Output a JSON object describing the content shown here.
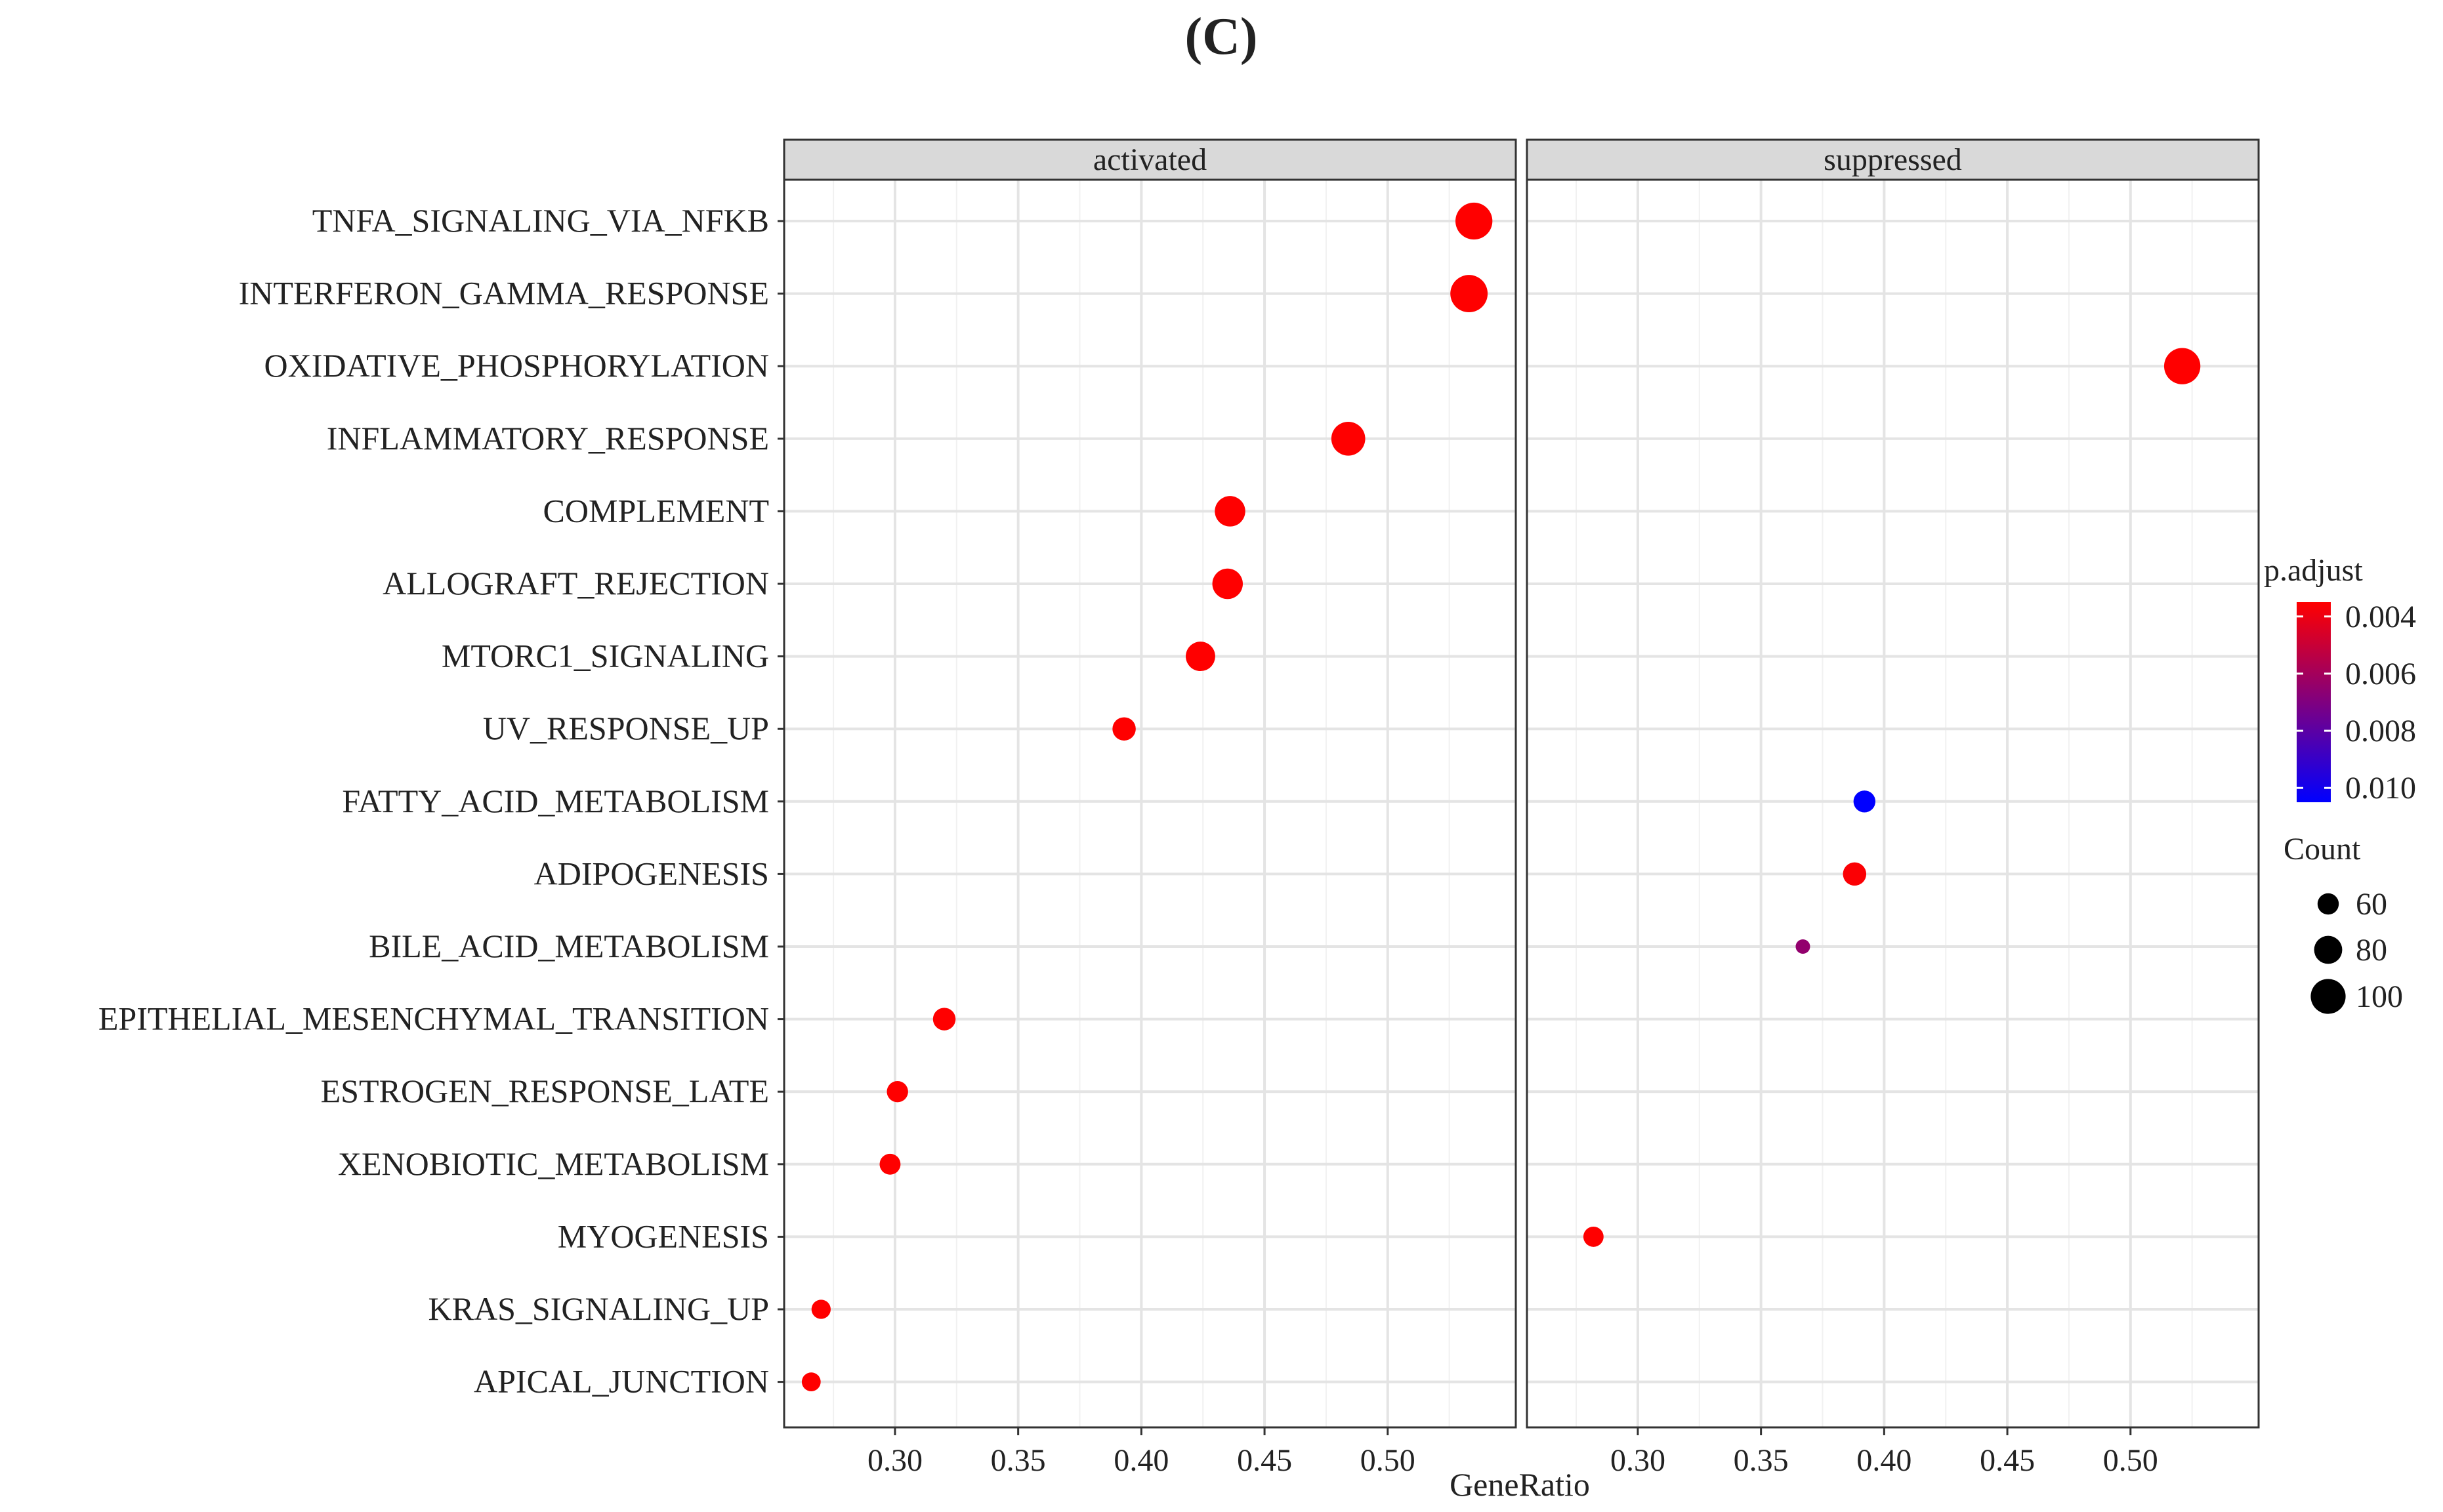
{
  "panel_label": "(C)",
  "chart_data": {
    "type": "scatter",
    "subtype": "dotplot",
    "xlabel": "GeneRatio",
    "ylabel": "",
    "xlim": [
      0.255,
      0.552
    ],
    "xticks": [
      0.3,
      0.35,
      0.4,
      0.45,
      0.5
    ],
    "xtick_labels": [
      "0.30",
      "0.35",
      "0.40",
      "0.45",
      "0.50"
    ],
    "grid": true,
    "categories": [
      "TNFA_SIGNALING_VIA_NFKB",
      "INTERFERON_GAMMA_RESPONSE",
      "OXIDATIVE_PHOSPHORYLATION",
      "INFLAMMATORY_RESPONSE",
      "COMPLEMENT",
      "ALLOGRAFT_REJECTION",
      "MTORC1_SIGNALING",
      "UV_RESPONSE_UP",
      "FATTY_ACID_METABOLISM",
      "ADIPOGENESIS",
      "BILE_ACID_METABOLISM",
      "EPITHELIAL_MESENCHYMAL_TRANSITION",
      "ESTROGEN_RESPONSE_LATE",
      "XENOBIOTIC_METABOLISM",
      "MYOGENESIS",
      "KRAS_SIGNALING_UP",
      "APICAL_JUNCTION"
    ],
    "panels": [
      {
        "name": "activated",
        "points": [
          {
            "category": "TNFA_SIGNALING_VIA_NFKB",
            "x": 0.535,
            "count": 106,
            "p_adjust": 0.0035
          },
          {
            "category": "INTERFERON_GAMMA_RESPONSE",
            "x": 0.533,
            "count": 107,
            "p_adjust": 0.0035
          },
          {
            "category": "INFLAMMATORY_RESPONSE",
            "x": 0.484,
            "count": 97,
            "p_adjust": 0.0035
          },
          {
            "category": "COMPLEMENT",
            "x": 0.436,
            "count": 87,
            "p_adjust": 0.0035
          },
          {
            "category": "ALLOGRAFT_REJECTION",
            "x": 0.435,
            "count": 87,
            "p_adjust": 0.0035
          },
          {
            "category": "MTORC1_SIGNALING",
            "x": 0.424,
            "count": 84,
            "p_adjust": 0.0035
          },
          {
            "category": "UV_RESPONSE_UP",
            "x": 0.393,
            "count": 66,
            "p_adjust": 0.0035
          },
          {
            "category": "EPITHELIAL_MESENCHYMAL_TRANSITION",
            "x": 0.32,
            "count": 64,
            "p_adjust": 0.0035
          },
          {
            "category": "ESTROGEN_RESPONSE_LATE",
            "x": 0.301,
            "count": 60,
            "p_adjust": 0.0035
          },
          {
            "category": "XENOBIOTIC_METABOLISM",
            "x": 0.298,
            "count": 59,
            "p_adjust": 0.0035
          },
          {
            "category": "KRAS_SIGNALING_UP",
            "x": 0.27,
            "count": 54,
            "p_adjust": 0.0035
          },
          {
            "category": "APICAL_JUNCTION",
            "x": 0.266,
            "count": 53,
            "p_adjust": 0.0035
          }
        ]
      },
      {
        "name": "suppressed",
        "points": [
          {
            "category": "OXIDATIVE_PHOSPHORYLATION",
            "x": 0.521,
            "count": 104,
            "p_adjust": 0.0035
          },
          {
            "category": "FATTY_ACID_METABOLISM",
            "x": 0.392,
            "count": 62,
            "p_adjust": 0.0105
          },
          {
            "category": "ADIPOGENESIS",
            "x": 0.388,
            "count": 66,
            "p_adjust": 0.0036
          },
          {
            "category": "BILE_ACID_METABOLISM",
            "x": 0.367,
            "count": 40,
            "p_adjust": 0.0065
          },
          {
            "category": "MYOGENESIS",
            "x": 0.282,
            "count": 57,
            "p_adjust": 0.0035
          }
        ]
      }
    ],
    "color_legend": {
      "title": "p.adjust",
      "range": [
        0.0035,
        0.0105
      ],
      "low_color": "#ff0000",
      "high_color": "#0000ff",
      "ticks": [
        0.004,
        0.006,
        0.008,
        0.01
      ],
      "tick_labels": [
        "0.004",
        "0.006",
        "0.008",
        "0.010"
      ]
    },
    "size_legend": {
      "title": "Count",
      "values": [
        60,
        80,
        100
      ],
      "labels": [
        "60",
        "80",
        "100"
      ],
      "point_color": "#000000"
    }
  }
}
